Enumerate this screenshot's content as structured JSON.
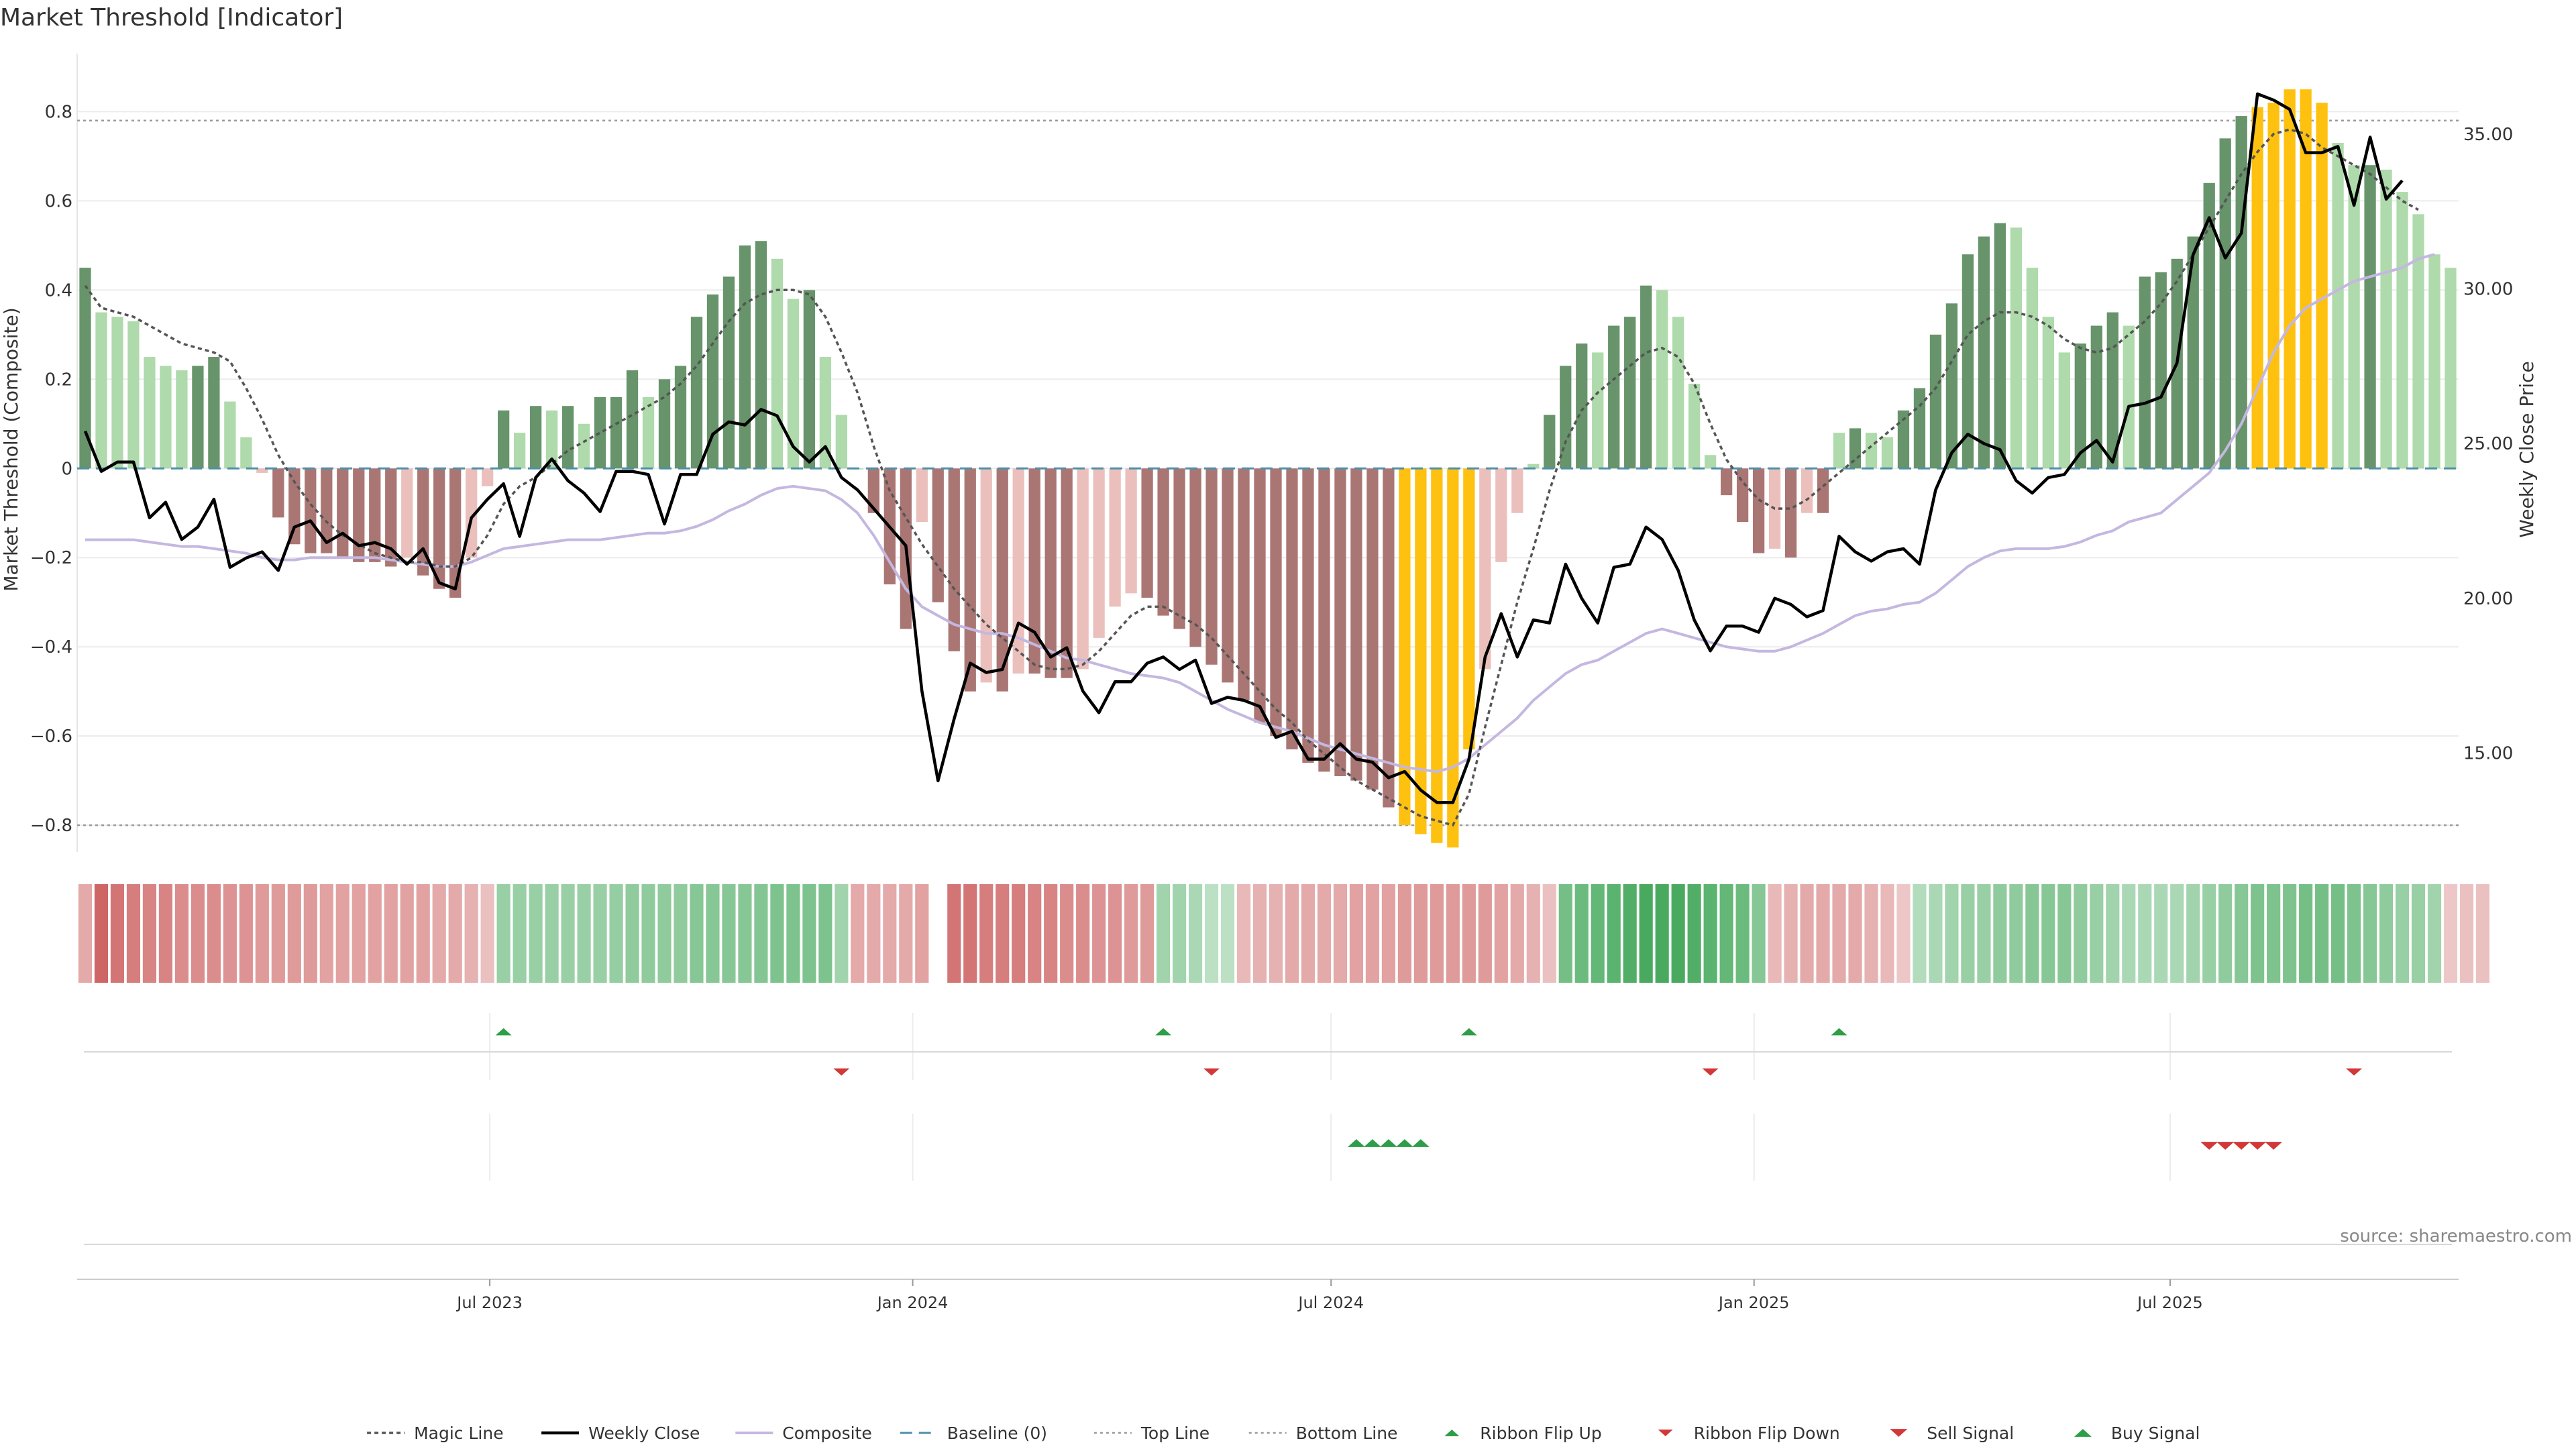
{
  "chart_data": {
    "type": "bar",
    "title": "Market Threshold [Indicator]",
    "ylabel": "Market Threshold (Composite)",
    "y2label": "Weekly Close Price",
    "ylim": [
      -0.86,
      0.93
    ],
    "y2lim": [
      11.8,
      37.6
    ],
    "yticks": [
      {
        "value": 0.8,
        "label": "0.8"
      },
      {
        "value": 0.6,
        "label": "0.6"
      },
      {
        "value": 0.4,
        "label": "0.4"
      },
      {
        "value": 0.2,
        "label": "0.2"
      },
      {
        "value": 0,
        "label": "0"
      },
      {
        "value": -0.2,
        "label": "−0.2"
      },
      {
        "value": -0.4,
        "label": "−0.4"
      },
      {
        "value": -0.6,
        "label": "−0.6"
      },
      {
        "value": -0.8,
        "label": "−0.8"
      }
    ],
    "y2ticks": [
      {
        "value": 35,
        "label": "35.00"
      },
      {
        "value": 30,
        "label": "30.00"
      },
      {
        "value": 25,
        "label": "25.00"
      },
      {
        "value": 20,
        "label": "20.00"
      },
      {
        "value": 15,
        "label": "15.00"
      }
    ],
    "xstart": "2023-01-06",
    "xend": "2025-10-31",
    "xticks": [
      {
        "date": "2023-07-01",
        "label": "Jul 2023"
      },
      {
        "date": "2024-01-01",
        "label": "Jan 2024"
      },
      {
        "date": "2024-07-01",
        "label": "Jul 2024"
      },
      {
        "date": "2025-01-01",
        "label": "Jan 2025"
      },
      {
        "date": "2025-07-01",
        "label": "Jul 2025"
      }
    ],
    "top_line": 0.78,
    "bottom_line": -0.8,
    "baseline": 0,
    "composite": [
      0.45,
      0.35,
      0.34,
      0.33,
      0.25,
      0.23,
      0.22,
      0.23,
      0.25,
      0.15,
      0.07,
      -0.01,
      -0.11,
      -0.17,
      -0.19,
      -0.19,
      -0.2,
      -0.21,
      -0.21,
      -0.22,
      -0.2,
      -0.24,
      -0.27,
      -0.29,
      -0.2,
      -0.04,
      0.13,
      0.08,
      0.14,
      0.13,
      0.14,
      0.1,
      0.16,
      0.16,
      0.22,
      0.16,
      0.2,
      0.23,
      0.34,
      0.39,
      0.43,
      0.5,
      0.51,
      0.47,
      0.38,
      0.4,
      0.25,
      0.12,
      0,
      -0.1,
      -0.26,
      -0.36,
      -0.12,
      -0.3,
      -0.41,
      -0.5,
      -0.48,
      -0.5,
      -0.46,
      -0.46,
      -0.47,
      -0.47,
      -0.45,
      -0.38,
      -0.31,
      -0.28,
      -0.29,
      -0.33,
      -0.36,
      -0.4,
      -0.44,
      -0.48,
      -0.52,
      -0.57,
      -0.6,
      -0.63,
      -0.66,
      -0.68,
      -0.69,
      -0.7,
      -0.72,
      -0.76,
      -0.8,
      -0.82,
      -0.84,
      -0.85,
      -0.63,
      -0.45,
      -0.21,
      -0.1,
      0.01,
      0.12,
      0.23,
      0.28,
      0.26,
      0.32,
      0.34,
      0.41,
      0.4,
      0.34,
      0.19,
      0.03,
      -0.06,
      -0.12,
      -0.19,
      -0.18,
      -0.2,
      -0.1,
      -0.1,
      0.08,
      0.09,
      0.08,
      0.07,
      0.13,
      0.18,
      0.3,
      0.37,
      0.48,
      0.52,
      0.55,
      0.54,
      0.45,
      0.34,
      0.26,
      0.28,
      0.32,
      0.35,
      0.32,
      0.43,
      0.44,
      0.47,
      0.52,
      0.64,
      0.74,
      0.79,
      0.81,
      0.82,
      0.85,
      0.85,
      0.82,
      0.73,
      0.68,
      0.68,
      0.67,
      0.62,
      0.57,
      0.48,
      0.45
    ],
    "weekly_close": [
      25.4,
      24.1,
      24.4,
      24.4,
      22.6,
      23.1,
      21.9,
      22.3,
      23.2,
      21.0,
      21.3,
      21.5,
      20.9,
      22.3,
      22.5,
      21.8,
      22.1,
      21.7,
      21.8,
      21.6,
      21.1,
      21.6,
      20.5,
      20.3,
      22.6,
      23.2,
      23.7,
      22.0,
      23.9,
      24.5,
      23.8,
      23.4,
      22.8,
      24.1,
      24.1,
      24.0,
      22.4,
      24.0,
      24.0,
      25.3,
      25.7,
      25.6,
      26.1,
      25.9,
      24.9,
      24.4,
      24.9,
      23.9,
      23.5,
      22.9,
      22.3,
      21.7,
      17.0,
      14.1,
      16.1,
      17.9,
      17.6,
      17.7,
      19.2,
      18.9,
      18.1,
      18.4,
      17.0,
      16.3,
      17.3,
      17.3,
      17.9,
      18.1,
      17.7,
      18.0,
      16.6,
      16.8,
      16.7,
      16.5,
      15.5,
      15.7,
      14.8,
      14.8,
      15.3,
      14.8,
      14.7,
      14.2,
      14.4,
      13.8,
      13.4,
      13.4,
      14.8,
      18.1,
      19.5,
      18.1,
      19.3,
      19.2,
      21.1,
      20.0,
      19.2,
      21.0,
      21.1,
      22.3,
      21.9,
      20.9,
      19.3,
      18.3,
      19.1,
      19.1,
      18.9,
      20.0,
      19.8,
      19.4,
      19.6,
      22.0,
      21.5,
      21.2,
      21.5,
      21.6,
      21.1,
      23.5,
      24.7,
      25.3,
      25.0,
      24.8,
      23.8,
      23.4,
      23.9,
      24.0,
      24.7,
      25.1,
      24.4,
      26.2,
      26.3,
      26.5,
      27.6,
      31.1,
      32.3,
      31.0,
      31.8,
      36.3,
      36.1,
      35.8,
      34.4,
      34.4,
      34.6,
      32.7,
      34.9,
      32.9,
      33.5
    ],
    "composite_line": [
      -0.16,
      -0.16,
      -0.16,
      -0.16,
      -0.165,
      -0.17,
      -0.175,
      -0.175,
      -0.18,
      -0.185,
      -0.19,
      -0.2,
      -0.205,
      -0.205,
      -0.2,
      -0.2,
      -0.2,
      -0.2,
      -0.2,
      -0.205,
      -0.21,
      -0.215,
      -0.22,
      -0.22,
      -0.21,
      -0.195,
      -0.18,
      -0.175,
      -0.17,
      -0.165,
      -0.16,
      -0.16,
      -0.16,
      -0.155,
      -0.15,
      -0.145,
      -0.145,
      -0.14,
      -0.13,
      -0.115,
      -0.095,
      -0.08,
      -0.06,
      -0.045,
      -0.04,
      -0.045,
      -0.05,
      -0.07,
      -0.1,
      -0.15,
      -0.21,
      -0.27,
      -0.31,
      -0.33,
      -0.35,
      -0.36,
      -0.37,
      -0.37,
      -0.38,
      -0.395,
      -0.41,
      -0.425,
      -0.43,
      -0.44,
      -0.45,
      -0.46,
      -0.465,
      -0.47,
      -0.48,
      -0.5,
      -0.52,
      -0.54,
      -0.555,
      -0.57,
      -0.58,
      -0.59,
      -0.605,
      -0.62,
      -0.63,
      -0.64,
      -0.65,
      -0.66,
      -0.67,
      -0.675,
      -0.68,
      -0.67,
      -0.65,
      -0.62,
      -0.59,
      -0.56,
      -0.52,
      -0.49,
      -0.46,
      -0.44,
      -0.43,
      -0.41,
      -0.39,
      -0.37,
      -0.36,
      -0.37,
      -0.38,
      -0.39,
      -0.4,
      -0.405,
      -0.41,
      -0.41,
      -0.4,
      -0.385,
      -0.37,
      -0.35,
      -0.33,
      -0.32,
      -0.315,
      -0.305,
      -0.3,
      -0.28,
      -0.25,
      -0.22,
      -0.2,
      -0.185,
      -0.18,
      -0.18,
      -0.18,
      -0.175,
      -0.165,
      -0.15,
      -0.14,
      -0.12,
      -0.11,
      -0.1,
      -0.07,
      -0.04,
      -0.01,
      0.04,
      0.1,
      0.18,
      0.26,
      0.32,
      0.36,
      0.38,
      0.4,
      0.42,
      0.43,
      0.44,
      0.45,
      0.47,
      0.48
    ],
    "magic_line": [
      0.41,
      0.36,
      0.35,
      0.34,
      0.32,
      0.3,
      0.28,
      0.27,
      0.26,
      0.24,
      0.18,
      0.11,
      0.03,
      -0.03,
      -0.08,
      -0.12,
      -0.15,
      -0.17,
      -0.19,
      -0.2,
      -0.21,
      -0.21,
      -0.22,
      -0.22,
      -0.2,
      -0.15,
      -0.08,
      -0.04,
      -0.02,
      0.01,
      0.04,
      0.06,
      0.08,
      0.1,
      0.12,
      0.14,
      0.16,
      0.19,
      0.23,
      0.28,
      0.33,
      0.37,
      0.39,
      0.4,
      0.4,
      0.39,
      0.34,
      0.26,
      0.17,
      0.05,
      -0.05,
      -0.11,
      -0.17,
      -0.22,
      -0.27,
      -0.31,
      -0.35,
      -0.38,
      -0.41,
      -0.44,
      -0.45,
      -0.45,
      -0.44,
      -0.41,
      -0.37,
      -0.33,
      -0.31,
      -0.31,
      -0.33,
      -0.35,
      -0.38,
      -0.42,
      -0.46,
      -0.5,
      -0.54,
      -0.57,
      -0.61,
      -0.64,
      -0.67,
      -0.7,
      -0.72,
      -0.74,
      -0.76,
      -0.78,
      -0.79,
      -0.8,
      -0.73,
      -0.58,
      -0.44,
      -0.3,
      -0.18,
      -0.05,
      0.06,
      0.13,
      0.17,
      0.2,
      0.23,
      0.26,
      0.27,
      0.25,
      0.19,
      0.1,
      0.02,
      -0.03,
      -0.07,
      -0.09,
      -0.09,
      -0.07,
      -0.04,
      -0.01,
      0.02,
      0.05,
      0.08,
      0.11,
      0.14,
      0.18,
      0.24,
      0.3,
      0.33,
      0.35,
      0.35,
      0.34,
      0.32,
      0.29,
      0.27,
      0.26,
      0.27,
      0.3,
      0.33,
      0.37,
      0.42,
      0.48,
      0.54,
      0.6,
      0.66,
      0.71,
      0.75,
      0.76,
      0.75,
      0.72,
      0.7,
      0.68,
      0.66,
      0.63,
      0.6,
      0.58
    ],
    "trade_extremes": [
      {
        "from": 82,
        "to": 86,
        "bottom": true
      },
      {
        "from": 135,
        "to": 139
      }
    ],
    "ribbon": [
      -0.4,
      -0.85,
      -0.75,
      -0.7,
      -0.65,
      -0.65,
      -0.6,
      -0.6,
      -0.6,
      -0.55,
      -0.55,
      -0.5,
      -0.5,
      -0.5,
      -0.5,
      -0.45,
      -0.45,
      -0.45,
      -0.45,
      -0.45,
      -0.45,
      -0.45,
      -0.4,
      -0.4,
      -0.35,
      -0.25,
      0.4,
      0.4,
      0.4,
      0.4,
      0.4,
      0.4,
      0.4,
      0.42,
      0.45,
      0.45,
      0.45,
      0.45,
      0.5,
      0.5,
      0.5,
      0.5,
      0.52,
      0.55,
      0.55,
      0.55,
      0.55,
      0.35,
      -0.4,
      -0.4,
      -0.4,
      -0.4,
      -0.45,
      null,
      -0.75,
      -0.75,
      -0.7,
      -0.7,
      -0.7,
      -0.65,
      -0.65,
      -0.6,
      -0.6,
      -0.55,
      -0.55,
      -0.5,
      -0.5,
      0.35,
      0.35,
      0.3,
      0.2,
      0.2,
      -0.3,
      -0.35,
      -0.35,
      -0.4,
      -0.4,
      -0.4,
      -0.4,
      -0.45,
      -0.45,
      -0.45,
      -0.5,
      -0.5,
      -0.5,
      -0.5,
      -0.5,
      -0.5,
      -0.45,
      -0.4,
      -0.35,
      -0.25,
      0.6,
      0.65,
      0.7,
      0.75,
      0.8,
      0.85,
      0.85,
      0.85,
      0.8,
      0.75,
      0.7,
      0.65,
      0.5,
      -0.3,
      -0.35,
      -0.4,
      -0.4,
      -0.4,
      -0.4,
      -0.35,
      -0.3,
      -0.2,
      0.25,
      0.3,
      0.35,
      0.4,
      0.4,
      0.45,
      0.45,
      0.5,
      0.5,
      0.5,
      0.45,
      0.4,
      0.35,
      0.3,
      0.3,
      0.3,
      0.3,
      0.35,
      0.4,
      0.45,
      0.5,
      0.55,
      0.55,
      0.55,
      0.6,
      0.6,
      0.6,
      0.55,
      0.5,
      0.45,
      0.4,
      0.4,
      0.35,
      -0.2,
      -0.25,
      -0.25
    ],
    "ribbon_flip_up": [
      26,
      67,
      86,
      109
    ],
    "ribbon_flip_down": [
      47,
      70,
      101,
      141
    ],
    "buy_signal": [
      79,
      80,
      81,
      82,
      83
    ],
    "sell_signal": [
      132,
      133,
      134,
      135,
      136
    ],
    "legend": [
      {
        "key": "magic",
        "label": "Magic Line"
      },
      {
        "key": "close",
        "label": "Weekly Close"
      },
      {
        "key": "composite",
        "label": "Composite"
      },
      {
        "key": "baseline",
        "label": "Baseline (0)"
      },
      {
        "key": "top",
        "label": "Top Line"
      },
      {
        "key": "bottom",
        "label": "Bottom Line"
      },
      {
        "key": "flipup",
        "label": "Ribbon Flip Up"
      },
      {
        "key": "flipdown",
        "label": "Ribbon Flip Down"
      },
      {
        "key": "sell",
        "label": "Sell Signal"
      },
      {
        "key": "buy",
        "label": "Buy Signal"
      }
    ],
    "legend_position": "bottom-center",
    "source": "source: sharemaestro.com",
    "colors": {
      "bar_strong_pos": "#67946a",
      "bar_weak_pos": "#afdaac",
      "bar_strong_neg": "#aa7674",
      "bar_weak_neg": "#ebc0bc",
      "bar_extreme": "#fec10f",
      "close": "#000000",
      "composite_line": "#c4b7e0",
      "magic": "#555555",
      "baseline": "#4f8fa8",
      "ref_line": "#9a9a9a",
      "flip_up": "#2e9e48",
      "flip_down": "#d23838"
    }
  }
}
